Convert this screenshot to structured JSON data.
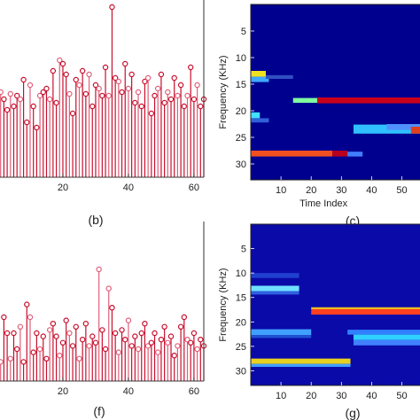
{
  "chart_data": [
    {
      "id": "b",
      "type": "stem",
      "caption": "(b)",
      "xlim": [
        0,
        63
      ],
      "ylim": [
        0,
        1
      ],
      "xticks": [
        20,
        40,
        60
      ],
      "color": "#c8102e",
      "color_alt": "#e0607a",
      "values": [
        0.22,
        0.48,
        0.44,
        0.38,
        0.47,
        0.4,
        0.46,
        0.44,
        0.55,
        0.31,
        0.52,
        0.4,
        0.28,
        0.46,
        0.48,
        0.5,
        0.44,
        0.6,
        0.42,
        0.66,
        0.64,
        0.58,
        0.47,
        0.36,
        0.55,
        0.52,
        0.6,
        0.47,
        0.58,
        0.4,
        0.52,
        0.5,
        0.46,
        0.62,
        0.46,
        0.96,
        0.56,
        0.54,
        0.48,
        0.64,
        0.5,
        0.58,
        0.42,
        0.48,
        0.4,
        0.54,
        0.56,
        0.36,
        0.46,
        0.5,
        0.58,
        0.42,
        0.48,
        0.44,
        0.56,
        0.46,
        0.52,
        0.4,
        0.46,
        0.62,
        0.44,
        0.52,
        0.4,
        0.44
      ]
    },
    {
      "id": "c",
      "type": "heatmap",
      "caption": "(c)",
      "xlabel": "Time Index",
      "ylabel": "Frequency (KHz)",
      "xlim": [
        0,
        56
      ],
      "ylim": [
        0,
        33
      ],
      "xticks": [
        10,
        20,
        30,
        40,
        50
      ],
      "yticks": [
        5,
        10,
        15,
        20,
        25,
        30
      ],
      "background": "#00008f",
      "blocks": [
        {
          "x0": 0,
          "x1": 5,
          "y0": 12.5,
          "y1": 13.6,
          "color": "#f0e020"
        },
        {
          "x0": 0,
          "x1": 6,
          "y0": 13.6,
          "y1": 14.6,
          "color": "#40a8ff"
        },
        {
          "x0": 5,
          "x1": 14,
          "y0": 13.3,
          "y1": 14.0,
          "color": "#3050c0"
        },
        {
          "x0": 22,
          "x1": 56,
          "y0": 17.5,
          "y1": 18.6,
          "color": "#c8001a"
        },
        {
          "x0": 14,
          "x1": 22,
          "y0": 17.6,
          "y1": 18.5,
          "color": "#80ffa0"
        },
        {
          "x0": 0,
          "x1": 3,
          "y0": 20.3,
          "y1": 21.4,
          "color": "#40e0ff"
        },
        {
          "x0": 0,
          "x1": 6,
          "y0": 21.4,
          "y1": 22.2,
          "color": "#3060d8"
        },
        {
          "x0": 34,
          "x1": 56,
          "y0": 22.6,
          "y1": 24.3,
          "color": "#30c0ff"
        },
        {
          "x0": 45,
          "x1": 56,
          "y0": 22.5,
          "y1": 23.6,
          "color": "#5090ff"
        },
        {
          "x0": 53,
          "x1": 56,
          "y0": 23.0,
          "y1": 24.3,
          "color": "#e04020"
        },
        {
          "x0": 0,
          "x1": 27,
          "y0": 27.5,
          "y1": 28.6,
          "color": "#f05020"
        },
        {
          "x0": 27,
          "x1": 32,
          "y0": 27.5,
          "y1": 28.6,
          "color": "#b80020"
        },
        {
          "x0": 32,
          "x1": 37,
          "y0": 27.7,
          "y1": 28.6,
          "color": "#4080ff"
        }
      ]
    },
    {
      "id": "f",
      "type": "stem",
      "caption": "(f)",
      "xlim": [
        0,
        63
      ],
      "ylim": [
        0,
        1
      ],
      "xticks": [
        20,
        40,
        60
      ],
      "color": "#c8102e",
      "color_alt": "#e0607a",
      "values": [
        0.05,
        0.12,
        0.4,
        0.3,
        0.14,
        0.3,
        0.2,
        0.34,
        0.12,
        0.48,
        0.4,
        0.18,
        0.3,
        0.2,
        0.28,
        0.14,
        0.32,
        0.36,
        0.28,
        0.16,
        0.24,
        0.38,
        0.3,
        0.22,
        0.34,
        0.14,
        0.26,
        0.36,
        0.22,
        0.28,
        0.24,
        0.7,
        0.32,
        0.2,
        0.58,
        0.46,
        0.3,
        0.18,
        0.32,
        0.26,
        0.38,
        0.22,
        0.28,
        0.2,
        0.3,
        0.36,
        0.22,
        0.24,
        0.3,
        0.18,
        0.26,
        0.34,
        0.24,
        0.28,
        0.16,
        0.22,
        0.34,
        0.4,
        0.26,
        0.24,
        0.3,
        0.2,
        0.26,
        0.22
      ]
    },
    {
      "id": "g",
      "type": "heatmap",
      "caption": "(g)",
      "xlabel": "",
      "ylabel": "Frequency (KHz)",
      "xlim": [
        0,
        56
      ],
      "ylim": [
        0,
        33
      ],
      "xticks": [
        10,
        20,
        30,
        40,
        50
      ],
      "yticks": [
        5,
        10,
        15,
        20,
        25,
        30
      ],
      "background": "#0a0aa8",
      "blocks": [
        {
          "x0": 0,
          "x1": 16,
          "y0": 10.0,
          "y1": 11.0,
          "color": "#2040d0"
        },
        {
          "x0": 0,
          "x1": 16,
          "y0": 12.6,
          "y1": 13.7,
          "color": "#70e0ff"
        },
        {
          "x0": 0,
          "x1": 16,
          "y0": 13.7,
          "y1": 14.4,
          "color": "#3060e0"
        },
        {
          "x0": 20,
          "x1": 56,
          "y0": 17.4,
          "y1": 18.5,
          "color": "#ff4020"
        },
        {
          "x0": 20,
          "x1": 56,
          "y0": 17.0,
          "y1": 17.4,
          "color": "#f0c020"
        },
        {
          "x0": 0,
          "x1": 20,
          "y0": 21.5,
          "y1": 22.7,
          "color": "#40a0ff"
        },
        {
          "x0": 0,
          "x1": 20,
          "y0": 22.7,
          "y1": 23.3,
          "color": "#2050d0"
        },
        {
          "x0": 32,
          "x1": 56,
          "y0": 21.6,
          "y1": 22.6,
          "color": "#3080ff"
        },
        {
          "x0": 34,
          "x1": 56,
          "y0": 22.6,
          "y1": 23.7,
          "color": "#30d0ff"
        },
        {
          "x0": 34,
          "x1": 56,
          "y0": 23.7,
          "y1": 24.8,
          "color": "#4080ff"
        },
        {
          "x0": 0,
          "x1": 33,
          "y0": 27.5,
          "y1": 28.6,
          "color": "#e8d020"
        },
        {
          "x0": 0,
          "x1": 33,
          "y0": 28.6,
          "y1": 29.2,
          "color": "#40a0ff"
        }
      ]
    }
  ]
}
